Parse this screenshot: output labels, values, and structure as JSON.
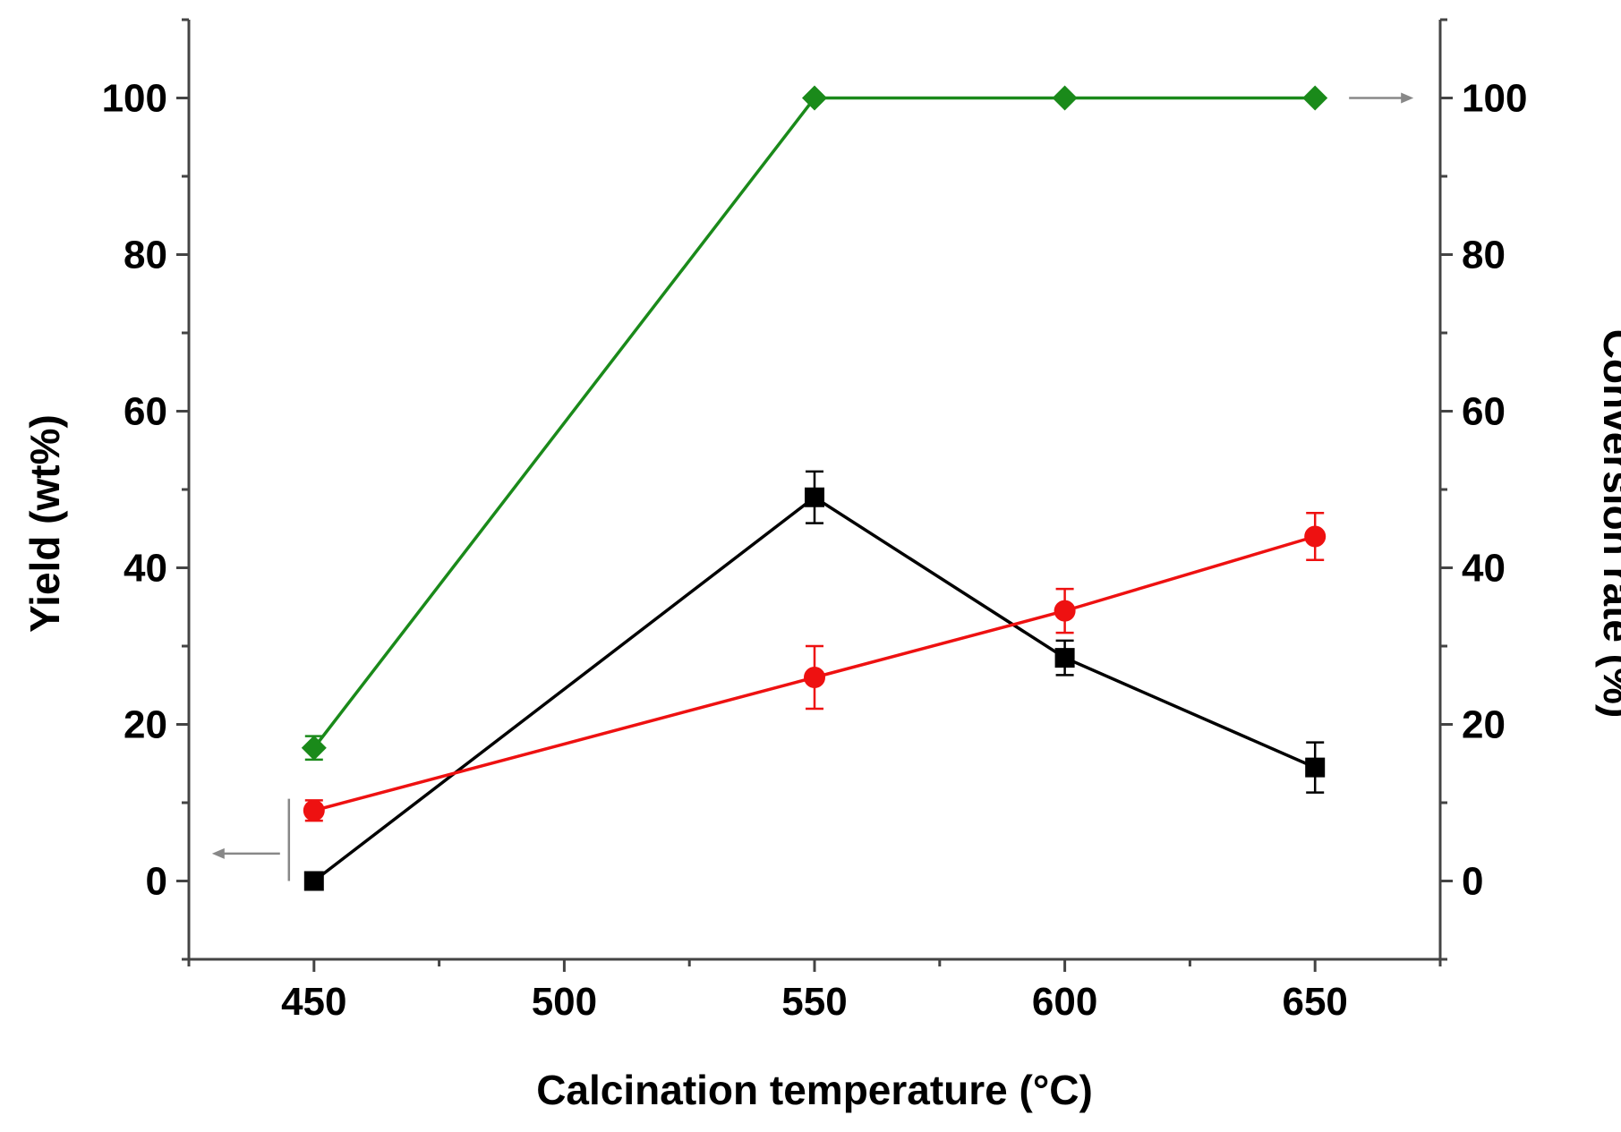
{
  "chart_data": {
    "type": "line",
    "title": "",
    "xlabel": "Calcination temperature (°C)",
    "ylabel_left": "Yield (wt%)",
    "ylabel_right": "Conversion rate (%)",
    "xlim": [
      425,
      675
    ],
    "ylim": [
      -10,
      110
    ],
    "x_ticks": [
      450,
      500,
      550,
      600,
      650
    ],
    "x_tick_labels": [
      "450",
      "500",
      "550",
      "600",
      "650"
    ],
    "y_ticks": [
      0,
      20,
      40,
      60,
      80,
      100
    ],
    "y_tick_labels": [
      "0",
      "20",
      "40",
      "60",
      "80",
      "100"
    ],
    "grid": false,
    "series": [
      {
        "name": "Conversion rate",
        "axis": "right",
        "color": "#1a8a1a",
        "marker": "diamond",
        "x": [
          450,
          550,
          600,
          650
        ],
        "values": [
          17,
          100,
          100,
          100
        ],
        "errors": [
          1.5,
          0,
          0,
          0
        ]
      },
      {
        "name": "Yield (black)",
        "axis": "left",
        "color": "#000000",
        "marker": "square",
        "x": [
          450,
          550,
          600,
          650
        ],
        "values": [
          0,
          49,
          28.5,
          14.5
        ],
        "errors": [
          0,
          3.3,
          2.2,
          3.2
        ]
      },
      {
        "name": "Yield (red)",
        "axis": "left",
        "color": "#ee1111",
        "marker": "circle",
        "x": [
          450,
          550,
          600,
          650
        ],
        "values": [
          9,
          26,
          34.5,
          44
        ],
        "errors": [
          1.3,
          4,
          2.8,
          3
        ]
      }
    ],
    "annotations": [
      {
        "type": "arrow",
        "direction": "left",
        "series": "Yield",
        "color": "#888888"
      },
      {
        "type": "arrow",
        "direction": "right",
        "series": "Conversion rate",
        "color": "#888888"
      }
    ]
  }
}
